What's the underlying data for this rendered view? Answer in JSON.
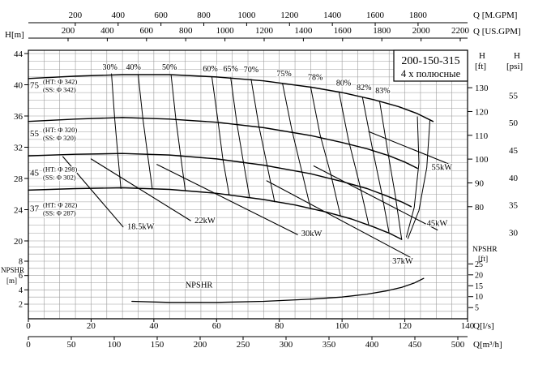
{
  "chart_data": {
    "type": "line",
    "title": "200-150-315",
    "subtitle": "4 х полюсные",
    "axes": {
      "top_mgpm": {
        "label": "Q [M.GPM]",
        "ticks": [
          200,
          400,
          600,
          800,
          1000,
          1200,
          1400,
          1600,
          1800
        ]
      },
      "top_usgpm": {
        "label": "Q [US.GPM]",
        "ticks": [
          200,
          400,
          600,
          800,
          1000,
          1200,
          1400,
          1600,
          1800,
          2000,
          2200
        ]
      },
      "left_h": {
        "label": "H[m]",
        "ticks": [
          44,
          40,
          36,
          32,
          28,
          24,
          20
        ]
      },
      "left_npshr": {
        "label": "NPSHR",
        "unit": "[m]",
        "ticks": [
          8,
          6,
          4,
          2
        ]
      },
      "right_hft": {
        "label": "H",
        "unit": "[ft]",
        "ticks": [
          130,
          120,
          110,
          100,
          90,
          80
        ]
      },
      "right_psi": {
        "label": "H",
        "unit": "[psi]",
        "ticks": [
          55,
          50,
          45,
          40,
          35,
          30
        ]
      },
      "right_npshr": {
        "label": "NPSHR",
        "unit": "[ft]",
        "ticks": [
          25,
          20,
          15,
          10,
          5
        ]
      },
      "bottom_ls": {
        "label": "Q[l/s]",
        "ticks": [
          0,
          20,
          40,
          60,
          80,
          100,
          120,
          140
        ]
      },
      "bottom_m3h": {
        "label": "Q[m³/h]",
        "ticks": [
          0,
          50,
          100,
          150,
          200,
          250,
          300,
          350,
          400,
          450,
          500
        ]
      }
    },
    "impellers": [
      {
        "power": "75",
        "head": 40.0,
        "ht": "(HT: Φ 342)",
        "ss": "(SS: Φ 342)"
      },
      {
        "power": "55",
        "head": 33.8,
        "ht": "(HT: Φ 320)",
        "ss": "(SS: Φ 320)"
      },
      {
        "power": "45",
        "head": 28.8,
        "ht": "(HT: Φ 298)",
        "ss": "(SS: Φ 302)"
      },
      {
        "power": "37",
        "head": 24.2,
        "ht": "(HT: Φ 282)",
        "ss": "(SS: Φ 287)"
      }
    ],
    "hq_curves": [
      {
        "name": "342",
        "points": [
          [
            0,
            40.8
          ],
          [
            15,
            41.1
          ],
          [
            30,
            41.3
          ],
          [
            45,
            41.3
          ],
          [
            60,
            41.0
          ],
          [
            75,
            40.5
          ],
          [
            90,
            39.7
          ],
          [
            100,
            39.0
          ],
          [
            110,
            38.1
          ],
          [
            118,
            37.2
          ],
          [
            124,
            36.3
          ],
          [
            129,
            35.3
          ]
        ]
      },
      {
        "name": "320",
        "points": [
          [
            0,
            35.3
          ],
          [
            15,
            35.6
          ],
          [
            30,
            35.8
          ],
          [
            45,
            35.6
          ],
          [
            60,
            35.2
          ],
          [
            75,
            34.5
          ],
          [
            90,
            33.5
          ],
          [
            100,
            32.6
          ],
          [
            108,
            31.8
          ],
          [
            115,
            30.9
          ],
          [
            120,
            30.1
          ],
          [
            124,
            29.3
          ]
        ]
      },
      {
        "name": "298",
        "points": [
          [
            0,
            30.9
          ],
          [
            15,
            31.1
          ],
          [
            30,
            31.2
          ],
          [
            45,
            31.0
          ],
          [
            60,
            30.5
          ],
          [
            75,
            29.7
          ],
          [
            90,
            28.6
          ],
          [
            100,
            27.6
          ],
          [
            108,
            26.7
          ],
          [
            114,
            25.8
          ],
          [
            119,
            25.0
          ],
          [
            122,
            24.4
          ]
        ]
      },
      {
        "name": "282",
        "points": [
          [
            0,
            26.5
          ],
          [
            15,
            26.7
          ],
          [
            30,
            26.8
          ],
          [
            45,
            26.6
          ],
          [
            60,
            26.1
          ],
          [
            75,
            25.3
          ],
          [
            85,
            24.6
          ],
          [
            95,
            23.7
          ],
          [
            103,
            22.8
          ],
          [
            110,
            21.8
          ],
          [
            115,
            21.0
          ],
          [
            119,
            20.2
          ]
        ]
      }
    ],
    "efficiency": {
      "labels": [
        {
          "text": "30%",
          "at": [
            26,
            41.9
          ]
        },
        {
          "text": "40%",
          "at": [
            33.5,
            41.9
          ]
        },
        {
          "text": "50%",
          "at": [
            45,
            41.9
          ]
        },
        {
          "text": "60%",
          "at": [
            58,
            41.7
          ]
        },
        {
          "text": "65%",
          "at": [
            64.5,
            41.7
          ]
        },
        {
          "text": "70%",
          "at": [
            71,
            41.6
          ]
        },
        {
          "text": "75%",
          "at": [
            81.5,
            41.1
          ]
        },
        {
          "text": "78%",
          "at": [
            91.5,
            40.6
          ]
        },
        {
          "text": "80%",
          "at": [
            100.5,
            39.9
          ]
        },
        {
          "text": "82%",
          "at": [
            107,
            39.3
          ]
        },
        {
          "text": "83%",
          "at": [
            113,
            38.9
          ]
        }
      ],
      "contours": [
        {
          "label": "30%",
          "points": [
            [
              26.5,
              41.4
            ],
            [
              27.5,
              35.7
            ],
            [
              28.5,
              31.2
            ],
            [
              29.5,
              26.7
            ]
          ]
        },
        {
          "label": "40%",
          "points": [
            [
              35,
              41.3
            ],
            [
              36.5,
              35.7
            ],
            [
              38,
              31.1
            ],
            [
              39.5,
              26.7
            ]
          ]
        },
        {
          "label": "50%",
          "points": [
            [
              45.5,
              41.3
            ],
            [
              47,
              35.6
            ],
            [
              48.5,
              31.0
            ],
            [
              50,
              26.5
            ]
          ]
        },
        {
          "label": "60%",
          "points": [
            [
              58.5,
              41.0
            ],
            [
              60.5,
              35.2
            ],
            [
              62,
              30.5
            ],
            [
              64,
              25.9
            ]
          ]
        },
        {
          "label": "65%",
          "points": [
            [
              64.5,
              40.9
            ],
            [
              66.5,
              35.0
            ],
            [
              68.5,
              30.2
            ],
            [
              70.5,
              25.6
            ]
          ]
        },
        {
          "label": "70%",
          "points": [
            [
              71,
              40.7
            ],
            [
              73.5,
              34.7
            ],
            [
              76,
              29.9
            ],
            [
              78.5,
              25.0
            ]
          ]
        },
        {
          "label": "75%",
          "points": [
            [
              81,
              40.2
            ],
            [
              84,
              34.2
            ],
            [
              87,
              29.2
            ],
            [
              90,
              24.1
            ]
          ]
        },
        {
          "label": "78%",
          "points": [
            [
              90,
              39.7
            ],
            [
              93,
              33.6
            ],
            [
              96.5,
              28.4
            ],
            [
              99.5,
              23.2
            ]
          ]
        },
        {
          "label": "80%",
          "points": [
            [
              99,
              39.1
            ],
            [
              102,
              33.0
            ],
            [
              105.5,
              27.4
            ],
            [
              108.5,
              22.1
            ]
          ]
        },
        {
          "label": "82%",
          "points": [
            [
              106.5,
              38.4
            ],
            [
              109.5,
              32.2
            ],
            [
              112.5,
              26.4
            ],
            [
              115,
              21.0
            ]
          ]
        },
        {
          "label": "83%",
          "points": [
            [
              112,
              37.8
            ],
            [
              114.5,
              31.6
            ],
            [
              117,
              25.7
            ],
            [
              119,
              20.2
            ]
          ]
        },
        {
          "label": "",
          "points": [
            [
              124,
              35.9
            ],
            [
              124.5,
              30.0
            ],
            [
              123,
              24.3
            ],
            [
              120.5,
              20.5
            ]
          ]
        },
        {
          "label": "",
          "points": [
            [
              128,
              35.4
            ],
            [
              127,
              29.4
            ],
            [
              124.5,
              23.9
            ],
            [
              121,
              20.3
            ]
          ]
        }
      ]
    },
    "power_lines": [
      {
        "label": "18.5kW",
        "points": [
          [
            11,
            30.8
          ],
          [
            30.2,
            21.8
          ]
        ],
        "label_at": [
          31.5,
          21.5
        ]
      },
      {
        "label": "22kW",
        "points": [
          [
            20,
            30.5
          ],
          [
            51.7,
            22.6
          ]
        ],
        "label_at": [
          53,
          22.3
        ]
      },
      {
        "label": "30kW",
        "points": [
          [
            41,
            29.8
          ],
          [
            85.8,
            20.8
          ]
        ],
        "label_at": [
          87,
          20.6
        ]
      },
      {
        "label": "37kW",
        "points": [
          [
            76,
            27.7
          ],
          [
            122.2,
            17.8
          ]
        ],
        "label_at": [
          116,
          17.1
        ]
      },
      {
        "label": "45kW",
        "points": [
          [
            91,
            29.6
          ],
          [
            130.4,
            21.4
          ]
        ],
        "label_at": [
          127,
          21.9
        ]
      },
      {
        "label": "55kW",
        "points": [
          [
            108.5,
            34.0
          ],
          [
            135,
            29.7
          ]
        ],
        "label_at": [
          128.5,
          29.1
        ]
      }
    ],
    "npshr": {
      "label": "NPSHR",
      "label_at": [
        50,
        4.3
      ],
      "points": [
        [
          33,
          2.4
        ],
        [
          45,
          2.25
        ],
        [
          60,
          2.25
        ],
        [
          75,
          2.4
        ],
        [
          90,
          2.7
        ],
        [
          100,
          3.0
        ],
        [
          108,
          3.4
        ],
        [
          114,
          3.85
        ],
        [
          119,
          4.35
        ],
        [
          123,
          4.95
        ],
        [
          126,
          5.6
        ]
      ]
    }
  }
}
